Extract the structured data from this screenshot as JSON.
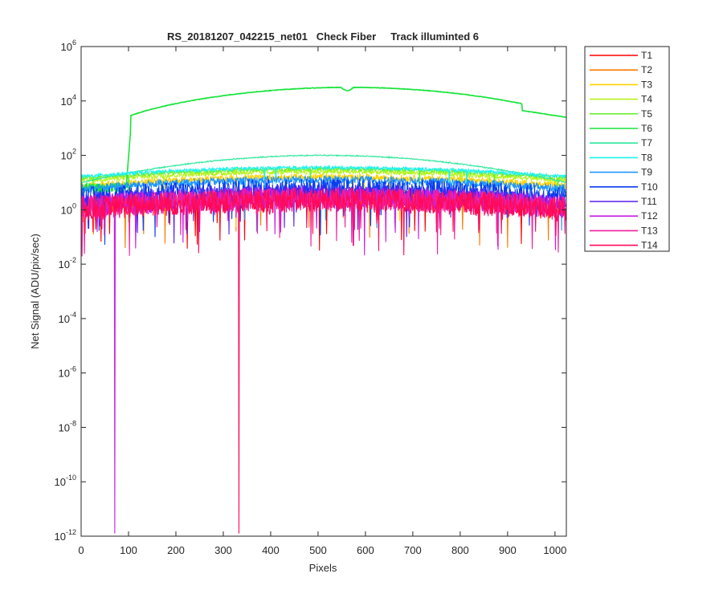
{
  "chart_data": {
    "type": "line",
    "title": "RS_20181207_042215_net01   Check Fiber     Track illuminted 6",
    "xlabel": "Pixels",
    "ylabel": "Net Signal (ADU/pix/sec)",
    "xlim": [
      0,
      1024
    ],
    "ylim_log10": [
      -12,
      6
    ],
    "y_scale": "log",
    "grid": false,
    "legend_position": "outside-right-top",
    "x_ticks": [
      0,
      100,
      200,
      300,
      400,
      500,
      600,
      700,
      800,
      900,
      1000
    ],
    "y_tick_exponents": [
      -12,
      -10,
      -8,
      -6,
      -4,
      -2,
      0,
      2,
      4,
      6
    ],
    "y_tick_base": "10",
    "series": [
      {
        "name": "T1",
        "color": "#ff0000",
        "profile": "noise",
        "peak_log10": 0.4,
        "spread": 0.55
      },
      {
        "name": "T2",
        "color": "#ff7a00",
        "profile": "noise",
        "peak_log10": 0.5,
        "spread": 0.45
      },
      {
        "name": "T3",
        "color": "#ffd200",
        "profile": "noise",
        "peak_log10": 1.2,
        "spread": 0.2
      },
      {
        "name": "T4",
        "color": "#b8f21c",
        "profile": "noise",
        "peak_log10": 1.4,
        "spread": 0.15
      },
      {
        "name": "T5",
        "color": "#6cf032",
        "profile": "noise",
        "peak_log10": 1.5,
        "spread": 0.12
      },
      {
        "name": "T6",
        "color": "#18e43a",
        "profile": "illuminated",
        "peak_log10": 4.5,
        "onset_x": 105,
        "onset_log10": 3.05,
        "end_log10": 3.4
      },
      {
        "name": "T7",
        "color": "#2ee89c",
        "profile": "smooth",
        "peak_log10": 2.0,
        "edge_log10": 1.0
      },
      {
        "name": "T8",
        "color": "#1ef2f2",
        "profile": "noise",
        "peak_log10": 1.55,
        "spread": 0.1
      },
      {
        "name": "T9",
        "color": "#1e96ff",
        "profile": "noise",
        "peak_log10": 1.1,
        "spread": 0.25
      },
      {
        "name": "T10",
        "color": "#0a3cf0",
        "profile": "noise",
        "peak_log10": 0.8,
        "spread": 0.6
      },
      {
        "name": "T11",
        "color": "#5a1ef0",
        "profile": "noise",
        "peak_log10": 0.6,
        "spread": 0.55
      },
      {
        "name": "T12",
        "color": "#c81ee6",
        "profile": "noise",
        "peak_log10": 0.45,
        "spread": 0.7,
        "spike_x": 71,
        "spike_log10": -11.9
      },
      {
        "name": "T13",
        "color": "#f51e9b",
        "profile": "noise",
        "peak_log10": 0.4,
        "spread": 0.7
      },
      {
        "name": "T14",
        "color": "#ff0a5a",
        "profile": "noise",
        "peak_log10": 0.35,
        "spread": 0.75,
        "spike_x": 333,
        "spike_log10": -11.9
      }
    ]
  }
}
